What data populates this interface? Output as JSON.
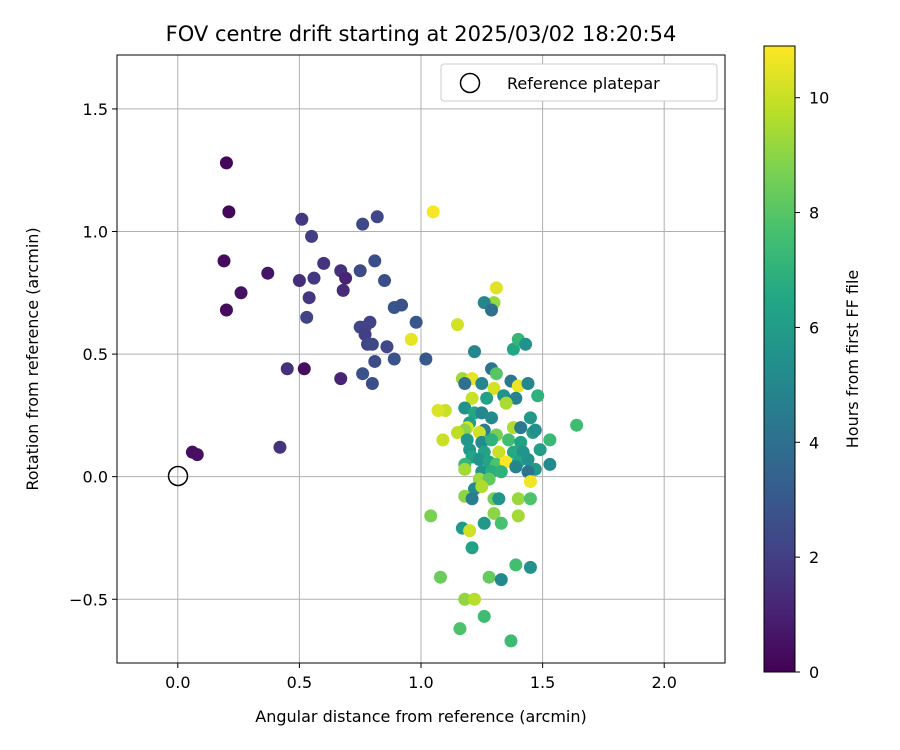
{
  "chart_data": {
    "type": "scatter",
    "title": "FOV centre drift starting at 2025/03/02 18:20:54",
    "xlabel": "Angular distance from reference (arcmin)",
    "ylabel": "Rotation from reference (arcmin)",
    "xlim": [
      -0.25,
      2.25
    ],
    "ylim": [
      -0.76,
      1.72
    ],
    "xticks": [
      0.0,
      0.5,
      1.0,
      1.5,
      2.0
    ],
    "xtick_labels": [
      "0.0",
      "0.5",
      "1.0",
      "1.5",
      "2.0"
    ],
    "yticks": [
      -0.5,
      0.0,
      0.5,
      1.0,
      1.5
    ],
    "ytick_labels": [
      "−0.5",
      "0.0",
      "0.5",
      "1.0",
      "1.5"
    ],
    "grid": true,
    "colormap": "viridis",
    "colorbar": {
      "label": "Hours from first FF file",
      "range": [
        0,
        10.9
      ],
      "ticks": [
        0,
        2,
        4,
        6,
        8,
        10
      ],
      "tick_labels": [
        "0",
        "2",
        "4",
        "6",
        "8",
        "10"
      ]
    },
    "legend": {
      "position": "top-right",
      "entries": [
        {
          "label": "Reference platepar",
          "marker": "hollow-circle"
        }
      ]
    },
    "reference_point": {
      "x": 0.0,
      "y": 0.0
    },
    "points": [
      {
        "x": 0.2,
        "y": 1.28,
        "t": 0.2
      },
      {
        "x": 0.21,
        "y": 1.08,
        "t": 0.2
      },
      {
        "x": 0.19,
        "y": 0.88,
        "t": 0.3
      },
      {
        "x": 0.2,
        "y": 0.68,
        "t": 0.3
      },
      {
        "x": 0.26,
        "y": 0.75,
        "t": 0.5
      },
      {
        "x": 0.37,
        "y": 0.83,
        "t": 0.6
      },
      {
        "x": 0.06,
        "y": 0.1,
        "t": 0.4
      },
      {
        "x": 0.08,
        "y": 0.09,
        "t": 0.5
      },
      {
        "x": 0.52,
        "y": 0.44,
        "t": 0.4
      },
      {
        "x": 0.45,
        "y": 0.44,
        "t": 1.5
      },
      {
        "x": 0.42,
        "y": 0.12,
        "t": 1.6
      },
      {
        "x": 0.51,
        "y": 1.05,
        "t": 1.8
      },
      {
        "x": 0.55,
        "y": 0.98,
        "t": 2.0
      },
      {
        "x": 0.5,
        "y": 0.8,
        "t": 1.4
      },
      {
        "x": 0.54,
        "y": 0.73,
        "t": 1.7
      },
      {
        "x": 0.56,
        "y": 0.81,
        "t": 1.8
      },
      {
        "x": 0.6,
        "y": 0.87,
        "t": 1.6
      },
      {
        "x": 0.53,
        "y": 0.65,
        "t": 2.1
      },
      {
        "x": 0.67,
        "y": 0.84,
        "t": 1.5
      },
      {
        "x": 0.69,
        "y": 0.81,
        "t": 1.1
      },
      {
        "x": 0.68,
        "y": 0.76,
        "t": 1.3
      },
      {
        "x": 0.67,
        "y": 0.4,
        "t": 1.1
      },
      {
        "x": 0.76,
        "y": 1.03,
        "t": 2.4
      },
      {
        "x": 0.82,
        "y": 1.06,
        "t": 2.3
      },
      {
        "x": 0.75,
        "y": 0.84,
        "t": 2.5
      },
      {
        "x": 0.81,
        "y": 0.88,
        "t": 2.6
      },
      {
        "x": 0.85,
        "y": 0.8,
        "t": 2.6
      },
      {
        "x": 0.75,
        "y": 0.61,
        "t": 2.3
      },
      {
        "x": 0.77,
        "y": 0.61,
        "t": 2.2
      },
      {
        "x": 0.79,
        "y": 0.63,
        "t": 2.1
      },
      {
        "x": 0.77,
        "y": 0.58,
        "t": 2.0
      },
      {
        "x": 0.78,
        "y": 0.54,
        "t": 2.3
      },
      {
        "x": 0.8,
        "y": 0.54,
        "t": 2.4
      },
      {
        "x": 0.81,
        "y": 0.47,
        "t": 2.5
      },
      {
        "x": 0.86,
        "y": 0.53,
        "t": 2.4
      },
      {
        "x": 0.76,
        "y": 0.42,
        "t": 2.7
      },
      {
        "x": 0.8,
        "y": 0.38,
        "t": 2.6
      },
      {
        "x": 0.89,
        "y": 0.48,
        "t": 2.8
      },
      {
        "x": 0.89,
        "y": 0.69,
        "t": 2.9
      },
      {
        "x": 0.92,
        "y": 0.7,
        "t": 2.7
      },
      {
        "x": 0.98,
        "y": 0.63,
        "t": 2.9
      },
      {
        "x": 1.02,
        "y": 0.48,
        "t": 3.0
      },
      {
        "x": 1.05,
        "y": 1.08,
        "t": 10.8
      },
      {
        "x": 0.96,
        "y": 0.56,
        "t": 10.5
      },
      {
        "x": 1.15,
        "y": 0.62,
        "t": 10.2
      },
      {
        "x": 1.31,
        "y": 0.77,
        "t": 10.4
      },
      {
        "x": 1.3,
        "y": 0.71,
        "t": 9.2
      },
      {
        "x": 1.26,
        "y": 0.71,
        "t": 5.0
      },
      {
        "x": 1.29,
        "y": 0.68,
        "t": 4.0
      },
      {
        "x": 1.22,
        "y": 0.51,
        "t": 5.0
      },
      {
        "x": 1.38,
        "y": 0.52,
        "t": 6.5
      },
      {
        "x": 1.4,
        "y": 0.56,
        "t": 7.2
      },
      {
        "x": 1.43,
        "y": 0.54,
        "t": 5.5
      },
      {
        "x": 1.29,
        "y": 0.44,
        "t": 4.2
      },
      {
        "x": 1.31,
        "y": 0.42,
        "t": 8.0
      },
      {
        "x": 1.17,
        "y": 0.4,
        "t": 9.3
      },
      {
        "x": 1.21,
        "y": 0.4,
        "t": 10.5
      },
      {
        "x": 1.18,
        "y": 0.38,
        "t": 4.0
      },
      {
        "x": 1.25,
        "y": 0.38,
        "t": 5.0
      },
      {
        "x": 1.3,
        "y": 0.36,
        "t": 10.2
      },
      {
        "x": 1.37,
        "y": 0.39,
        "t": 4.3
      },
      {
        "x": 1.4,
        "y": 0.37,
        "t": 10.6
      },
      {
        "x": 1.44,
        "y": 0.38,
        "t": 5.0
      },
      {
        "x": 1.21,
        "y": 0.32,
        "t": 10.0
      },
      {
        "x": 1.27,
        "y": 0.32,
        "t": 6.2
      },
      {
        "x": 1.34,
        "y": 0.33,
        "t": 5.5
      },
      {
        "x": 1.39,
        "y": 0.32,
        "t": 4.8
      },
      {
        "x": 1.48,
        "y": 0.33,
        "t": 7.0
      },
      {
        "x": 1.18,
        "y": 0.28,
        "t": 5.5
      },
      {
        "x": 1.1,
        "y": 0.27,
        "t": 10.0
      },
      {
        "x": 1.07,
        "y": 0.27,
        "t": 10.3
      },
      {
        "x": 1.22,
        "y": 0.26,
        "t": 6.5
      },
      {
        "x": 1.25,
        "y": 0.26,
        "t": 5.0
      },
      {
        "x": 1.29,
        "y": 0.24,
        "t": 5.2
      },
      {
        "x": 1.35,
        "y": 0.3,
        "t": 9.5
      },
      {
        "x": 1.45,
        "y": 0.24,
        "t": 5.8
      },
      {
        "x": 1.2,
        "y": 0.22,
        "t": 6.0
      },
      {
        "x": 1.26,
        "y": 0.19,
        "t": 4.6
      },
      {
        "x": 1.19,
        "y": 0.2,
        "t": 10.2
      },
      {
        "x": 1.18,
        "y": 0.19,
        "t": 9.0
      },
      {
        "x": 1.15,
        "y": 0.18,
        "t": 9.8
      },
      {
        "x": 1.24,
        "y": 0.18,
        "t": 10.1
      },
      {
        "x": 1.31,
        "y": 0.17,
        "t": 8.6
      },
      {
        "x": 1.38,
        "y": 0.2,
        "t": 9.6
      },
      {
        "x": 1.41,
        "y": 0.2,
        "t": 4.4
      },
      {
        "x": 1.46,
        "y": 0.18,
        "t": 6.0
      },
      {
        "x": 1.47,
        "y": 0.19,
        "t": 5.4
      },
      {
        "x": 1.09,
        "y": 0.15,
        "t": 10.0
      },
      {
        "x": 1.19,
        "y": 0.15,
        "t": 5.7
      },
      {
        "x": 1.25,
        "y": 0.14,
        "t": 5.2
      },
      {
        "x": 1.29,
        "y": 0.15,
        "t": 7.0
      },
      {
        "x": 1.36,
        "y": 0.15,
        "t": 7.6
      },
      {
        "x": 1.41,
        "y": 0.14,
        "t": 6.2
      },
      {
        "x": 1.53,
        "y": 0.15,
        "t": 7.3
      },
      {
        "x": 1.64,
        "y": 0.21,
        "t": 7.5
      },
      {
        "x": 1.2,
        "y": 0.11,
        "t": 5.8
      },
      {
        "x": 1.26,
        "y": 0.1,
        "t": 6.3
      },
      {
        "x": 1.32,
        "y": 0.1,
        "t": 10.0
      },
      {
        "x": 1.38,
        "y": 0.1,
        "t": 6.6
      },
      {
        "x": 1.42,
        "y": 0.1,
        "t": 5.6
      },
      {
        "x": 1.49,
        "y": 0.11,
        "t": 6.0
      },
      {
        "x": 1.21,
        "y": 0.08,
        "t": 6.4
      },
      {
        "x": 1.24,
        "y": 0.07,
        "t": 5.6
      },
      {
        "x": 1.18,
        "y": 0.05,
        "t": 7.2
      },
      {
        "x": 1.28,
        "y": 0.06,
        "t": 6.4
      },
      {
        "x": 1.31,
        "y": 0.05,
        "t": 7.8
      },
      {
        "x": 1.35,
        "y": 0.06,
        "t": 10.9
      },
      {
        "x": 1.4,
        "y": 0.06,
        "t": 6.5
      },
      {
        "x": 1.44,
        "y": 0.07,
        "t": 5.5
      },
      {
        "x": 1.47,
        "y": 0.03,
        "t": 5.8
      },
      {
        "x": 1.53,
        "y": 0.05,
        "t": 5.1
      },
      {
        "x": 1.18,
        "y": 0.03,
        "t": 9.4
      },
      {
        "x": 1.25,
        "y": 0.02,
        "t": 5.6
      },
      {
        "x": 1.29,
        "y": 0.02,
        "t": 6.8
      },
      {
        "x": 1.33,
        "y": 0.02,
        "t": 7.0
      },
      {
        "x": 1.39,
        "y": 0.04,
        "t": 4.9
      },
      {
        "x": 1.44,
        "y": 0.02,
        "t": 4.2
      },
      {
        "x": 1.45,
        "y": -0.02,
        "t": 10.7
      },
      {
        "x": 1.24,
        "y": -0.01,
        "t": 9.3
      },
      {
        "x": 1.28,
        "y": -0.01,
        "t": 8.2
      },
      {
        "x": 1.22,
        "y": -0.05,
        "t": 5.2
      },
      {
        "x": 1.25,
        "y": -0.04,
        "t": 9.6
      },
      {
        "x": 1.18,
        "y": -0.08,
        "t": 9.0
      },
      {
        "x": 1.21,
        "y": -0.09,
        "t": 4.6
      },
      {
        "x": 1.3,
        "y": -0.09,
        "t": 8.6
      },
      {
        "x": 1.32,
        "y": -0.09,
        "t": 5.6
      },
      {
        "x": 1.4,
        "y": -0.09,
        "t": 9.2
      },
      {
        "x": 1.45,
        "y": -0.09,
        "t": 7.8
      },
      {
        "x": 1.04,
        "y": -0.16,
        "t": 8.7
      },
      {
        "x": 1.3,
        "y": -0.15,
        "t": 9.0
      },
      {
        "x": 1.4,
        "y": -0.16,
        "t": 9.4
      },
      {
        "x": 1.17,
        "y": -0.21,
        "t": 5.9
      },
      {
        "x": 1.2,
        "y": -0.22,
        "t": 10.1
      },
      {
        "x": 1.26,
        "y": -0.19,
        "t": 5.8
      },
      {
        "x": 1.33,
        "y": -0.19,
        "t": 7.7
      },
      {
        "x": 1.21,
        "y": -0.29,
        "t": 6.3
      },
      {
        "x": 1.39,
        "y": -0.36,
        "t": 7.6
      },
      {
        "x": 1.45,
        "y": -0.37,
        "t": 5.5
      },
      {
        "x": 1.08,
        "y": -0.41,
        "t": 8.4
      },
      {
        "x": 1.28,
        "y": -0.41,
        "t": 8.3
      },
      {
        "x": 1.33,
        "y": -0.42,
        "t": 5.1
      },
      {
        "x": 1.18,
        "y": -0.5,
        "t": 9.1
      },
      {
        "x": 1.22,
        "y": -0.5,
        "t": 9.7
      },
      {
        "x": 1.16,
        "y": -0.62,
        "t": 7.8
      },
      {
        "x": 1.26,
        "y": -0.57,
        "t": 7.5
      },
      {
        "x": 1.37,
        "y": -0.67,
        "t": 7.4
      }
    ]
  }
}
